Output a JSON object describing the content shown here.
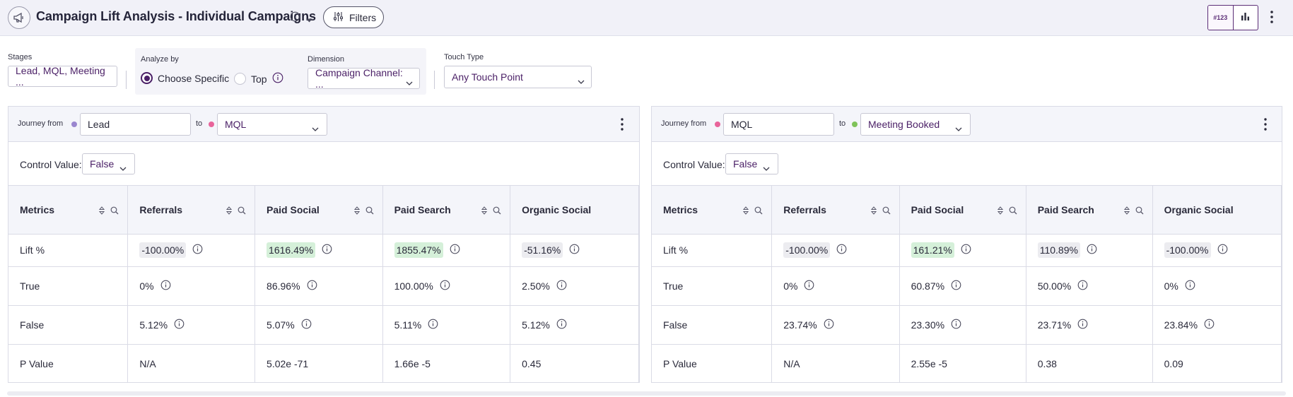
{
  "header": {
    "title": "Campaign Lift Analysis - Individual Campaigns",
    "filters_label": "Filters",
    "view_number_label": "#123"
  },
  "controls": {
    "stages_label": "Stages",
    "stages_value": "Lead, MQL, Meeting ...",
    "analyze_by_label": "Analyze by",
    "option_choose_specific": "Choose Specific",
    "option_top": "Top",
    "dimension_label": "Dimension",
    "dimension_value": "Campaign Channel: ...",
    "touch_type_label": "Touch Type",
    "touch_type_value": "Any Touch Point"
  },
  "panels": [
    {
      "journey_from_label": "Journey from",
      "from_stage": "Lead",
      "to_label": "to",
      "to_stage": "MQL",
      "control_value_label": "Control Value:",
      "control_value": "False",
      "columns": [
        "Metrics",
        "Referrals",
        "Paid Social",
        "Paid Search",
        "Organic Social"
      ],
      "rows": [
        {
          "metric": "Lift %",
          "values": [
            "-100.00%",
            "1616.49%",
            "1855.47%",
            "-51.16%"
          ],
          "styles": [
            "neutral",
            "positive",
            "positive",
            "neutral"
          ]
        },
        {
          "metric": "True",
          "values": [
            "0%",
            "86.96%",
            "100.00%",
            "2.50%"
          ]
        },
        {
          "metric": "False",
          "values": [
            "5.12%",
            "5.07%",
            "5.11%",
            "5.12%"
          ]
        },
        {
          "metric": "P Value",
          "values": [
            "N/A",
            "5.02e -71",
            "1.66e -5",
            "0.45"
          ]
        }
      ]
    },
    {
      "journey_from_label": "Journey from",
      "from_stage": "MQL",
      "to_label": "to",
      "to_stage": "Meeting Booked",
      "control_value_label": "Control Value:",
      "control_value": "False",
      "columns": [
        "Metrics",
        "Referrals",
        "Paid Social",
        "Paid Search",
        "Organic Social"
      ],
      "rows": [
        {
          "metric": "Lift %",
          "values": [
            "-100.00%",
            "161.21%",
            "110.89%",
            "-100.00%"
          ],
          "styles": [
            "neutral",
            "positive",
            "neutral",
            "neutral"
          ]
        },
        {
          "metric": "True",
          "values": [
            "0%",
            "60.87%",
            "50.00%",
            "0%"
          ]
        },
        {
          "metric": "False",
          "values": [
            "23.74%",
            "23.30%",
            "23.71%",
            "23.84%"
          ]
        },
        {
          "metric": "P Value",
          "values": [
            "N/A",
            "2.55e -5",
            "0.38",
            "0.09"
          ]
        }
      ]
    }
  ],
  "colors": {
    "accent": "#4a1f66",
    "positive_chip": "#d5f0d9",
    "neutral_chip": "#ececf0",
    "lead_dot": "#9a86cf",
    "mql_dot": "#e8649a",
    "meeting_dot": "#7fc35a"
  }
}
